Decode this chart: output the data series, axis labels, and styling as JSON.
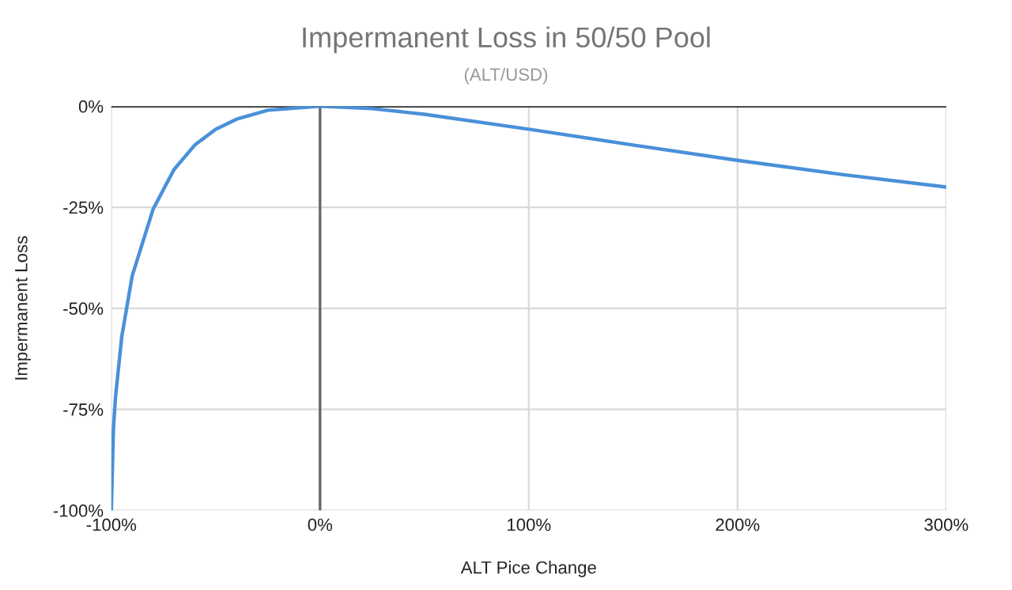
{
  "chart_data": {
    "type": "line",
    "title": "Impermanent Loss in 50/50 Pool",
    "subtitle": "(ALT/USD)",
    "xlabel": "ALT Pice Change",
    "ylabel": "Impermanent Loss",
    "x": [
      -100,
      -99,
      -98,
      -95,
      -90,
      -80,
      -70,
      -60,
      -50,
      -40,
      -25,
      0,
      25,
      50,
      100,
      150,
      200,
      250,
      300
    ],
    "series": [
      {
        "color": "#4a90d9",
        "values": [
          -100,
          -80,
          -72,
          -57,
          -42,
          -25.5,
          -15.7,
          -9.6,
          -5.7,
          -3.2,
          -1,
          0,
          -0.6,
          -2,
          -5.7,
          -9.6,
          -13.4,
          -16.9,
          -20
        ]
      }
    ],
    "xlim": [
      -100,
      300
    ],
    "ylim": [
      -100,
      0
    ],
    "xticks": [
      {
        "value": -100,
        "label": "-100%"
      },
      {
        "value": 0,
        "label": "0%"
      },
      {
        "value": 100,
        "label": "100%"
      },
      {
        "value": 200,
        "label": "200%"
      },
      {
        "value": 300,
        "label": "300%"
      }
    ],
    "yticks": [
      {
        "value": -100,
        "label": "-100%"
      },
      {
        "value": -75,
        "label": "-75%"
      },
      {
        "value": -50,
        "label": "-50%"
      },
      {
        "value": -25,
        "label": "-25%"
      },
      {
        "value": 0,
        "label": "0%"
      }
    ],
    "ref_lines": [
      {
        "axis": "x",
        "value": 0,
        "color": "#666666"
      },
      {
        "axis": "y",
        "value": 0,
        "color": "#333333"
      }
    ],
    "grid": true,
    "marker": "none",
    "line_style": "solid"
  }
}
